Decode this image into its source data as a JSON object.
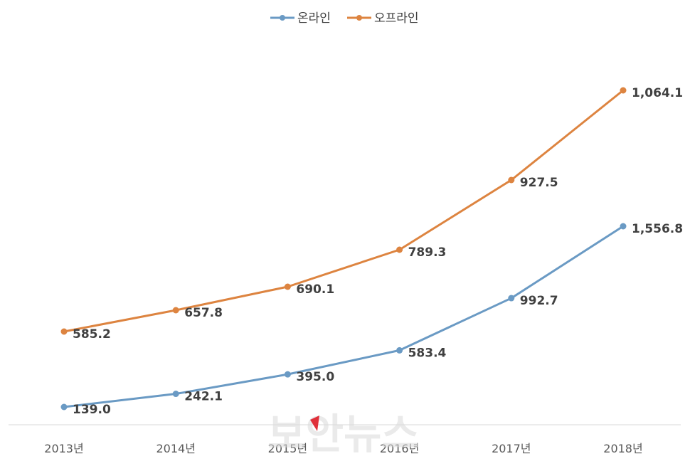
{
  "chart_data": {
    "type": "line",
    "categories": [
      "2013년",
      "2014년",
      "2015년",
      "2016년",
      "2017년",
      "2018년"
    ],
    "series": [
      {
        "name": "온라인",
        "color": "#6a9ac4",
        "values": [
          139.0,
          242.1,
          395.0,
          583.4,
          992.7,
          1556.8
        ],
        "labels": [
          "139.0",
          "242.1",
          "395.0",
          "583.4",
          "992.7",
          "1,556.8"
        ]
      },
      {
        "name": "오프라인",
        "color": "#dd8440",
        "values": [
          585.2,
          657.8,
          690.1,
          789.3,
          927.5,
          1064.1
        ],
        "labels": [
          "585.2",
          "657.8",
          "690.1",
          "789.3",
          "927.5",
          "1,064.1"
        ]
      }
    ],
    "legend": "top-center",
    "grid": false
  },
  "watermark": {
    "text": "보안뉴스",
    "accent_color": "#e0303a"
  }
}
